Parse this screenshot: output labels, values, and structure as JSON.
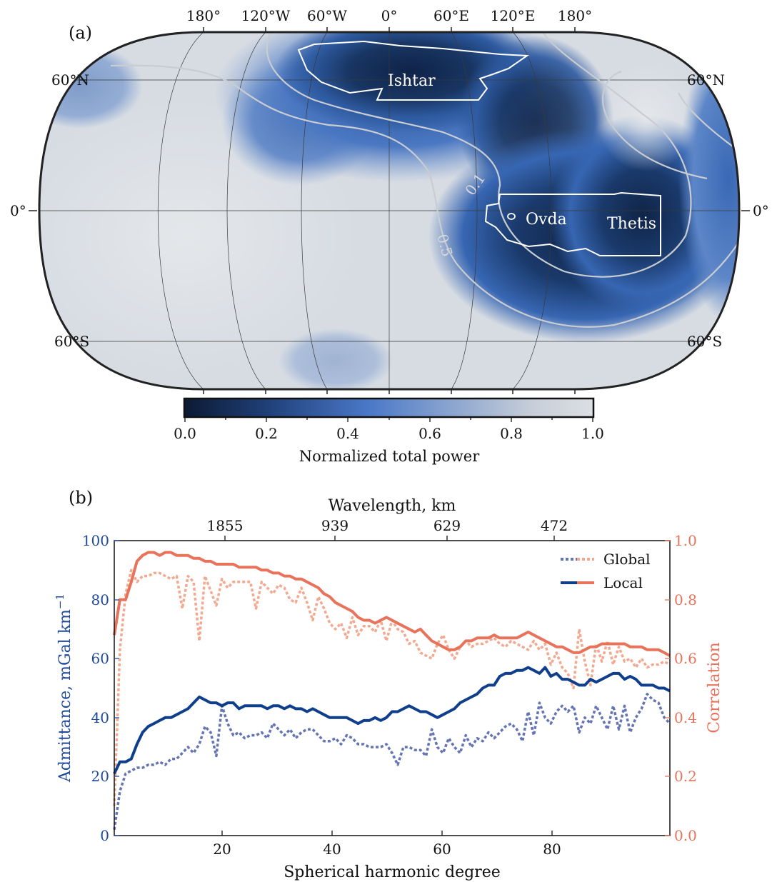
{
  "panel_a": {
    "label": "(a)",
    "lon_labels": [
      "180°",
      "120°W",
      "60°W",
      "0°",
      "60°E",
      "120°E",
      "180°"
    ],
    "lat_labels_left": [
      "60°N",
      "0°",
      "60°S"
    ],
    "lat_labels_right": [
      "60°N",
      "0°",
      "60°S"
    ],
    "regions": [
      "Ishtar",
      "Ovda",
      "Thetis"
    ],
    "contour_labels": [
      "0.1",
      "0.5"
    ],
    "colorbar": {
      "label": "Normalized total power",
      "ticks": [
        "0.0",
        "0.2",
        "0.4",
        "0.6",
        "0.8",
        "1.0"
      ],
      "colors": [
        "#0b1a33",
        "#1f3f78",
        "#4a78c8",
        "#8aa4cf",
        "#c7ced9",
        "#dcdfe3"
      ]
    }
  },
  "panel_b": {
    "label": "(b)",
    "top_axis_label": "Wavelength, km",
    "top_ticks": [
      "1855",
      "939",
      "629",
      "472"
    ],
    "xlabel": "Spherical harmonic degree",
    "ylabel_left": "Admittance, mGal km",
    "ylabel_left_sup": "−1",
    "ylabel_right": "Correlation",
    "x_ticks": [
      "20",
      "40",
      "60",
      "80"
    ],
    "y_left_ticks": [
      "0",
      "20",
      "40",
      "60",
      "80",
      "100"
    ],
    "y_right_ticks": [
      "0.0",
      "0.2",
      "0.4",
      "0.6",
      "0.8",
      "1.0"
    ],
    "legend": [
      "Global",
      "Local"
    ],
    "colors": {
      "admittance": "#0f3f8c",
      "admittance_global": "#6574b3",
      "correlation": "#e8735a",
      "correlation_global": "#f2a98f"
    }
  },
  "chart_data": {
    "type": "line",
    "x": [
      1,
      2,
      3,
      4,
      5,
      6,
      7,
      8,
      9,
      10,
      11,
      12,
      13,
      14,
      15,
      16,
      17,
      18,
      19,
      20,
      21,
      22,
      23,
      24,
      25,
      26,
      27,
      28,
      29,
      30,
      31,
      32,
      33,
      34,
      35,
      36,
      37,
      38,
      39,
      40,
      41,
      42,
      43,
      44,
      45,
      46,
      47,
      48,
      49,
      50,
      51,
      52,
      53,
      54,
      55,
      56,
      57,
      58,
      59,
      60,
      61,
      62,
      63,
      64,
      65,
      66,
      67,
      68,
      69,
      70,
      71,
      72,
      73,
      74,
      75,
      76,
      77,
      78,
      79,
      80,
      81,
      82,
      83,
      84,
      85,
      86,
      87,
      88,
      89,
      90,
      91,
      92,
      93,
      94,
      95,
      96,
      97,
      98,
      99
    ],
    "xlabel": "Spherical harmonic degree",
    "xlim": [
      1,
      99
    ],
    "ylabel": "Admittance, mGal km−1",
    "ylim": [
      0,
      100
    ],
    "y2label": "Correlation",
    "y2lim": [
      0,
      1
    ],
    "series": [
      {
        "name": "Global",
        "axis": "left",
        "values": [
          2,
          15,
          21,
          22,
          23,
          23,
          24,
          24,
          25,
          24,
          26,
          26,
          28,
          30,
          28,
          31,
          37,
          35,
          27,
          44,
          38,
          34,
          35,
          33,
          34,
          34,
          35,
          33,
          38,
          36,
          34,
          36,
          33,
          35,
          36,
          36,
          34,
          32,
          32,
          33,
          31,
          34,
          33,
          31,
          31,
          30,
          30,
          30,
          31,
          28,
          24,
          30,
          30,
          29,
          29,
          27,
          36,
          30,
          28,
          33,
          30,
          28,
          34,
          30,
          33,
          32,
          35,
          33,
          35,
          37,
          38,
          36,
          32,
          42,
          34,
          45,
          40,
          38,
          42,
          44,
          42,
          44,
          35,
          40,
          38,
          44,
          40,
          36,
          44,
          36,
          44,
          35,
          40,
          43,
          48,
          46,
          45,
          40,
          38
        ]
      },
      {
        "name": "Local",
        "axis": "left",
        "values": [
          21,
          25,
          25,
          26,
          31,
          35,
          37,
          38,
          39,
          40,
          40,
          41,
          42,
          43,
          45,
          47,
          46,
          45,
          45,
          44,
          45,
          45,
          43,
          44,
          44,
          44,
          44,
          43,
          44,
          44,
          43,
          44,
          43,
          43,
          42,
          43,
          42,
          41,
          40,
          40,
          40,
          40,
          39,
          38,
          39,
          39,
          40,
          39,
          40,
          42,
          42,
          43,
          44,
          43,
          42,
          42,
          41,
          40,
          41,
          42,
          43,
          45,
          46,
          47,
          48,
          50,
          51,
          51,
          54,
          55,
          55,
          56,
          56,
          57,
          56,
          55,
          57,
          54,
          55,
          53,
          53,
          52,
          51,
          51,
          53,
          52,
          53,
          54,
          55,
          55,
          53,
          54,
          53,
          51,
          51,
          51,
          50,
          50,
          49
        ]
      },
      {
        "name": "Global",
        "axis": "right",
        "values": [
          0.1,
          0.63,
          0.82,
          0.9,
          0.86,
          0.88,
          0.88,
          0.89,
          0.89,
          0.88,
          0.87,
          0.88,
          0.77,
          0.88,
          0.86,
          0.66,
          0.88,
          0.83,
          0.78,
          0.87,
          0.84,
          0.86,
          0.86,
          0.86,
          0.86,
          0.77,
          0.86,
          0.84,
          0.82,
          0.85,
          0.84,
          0.8,
          0.79,
          0.84,
          0.79,
          0.73,
          0.81,
          0.77,
          0.72,
          0.7,
          0.72,
          0.67,
          0.74,
          0.68,
          0.71,
          0.71,
          0.69,
          0.73,
          0.66,
          0.73,
          0.7,
          0.69,
          0.65,
          0.66,
          0.62,
          0.61,
          0.6,
          0.65,
          0.68,
          0.63,
          0.6,
          0.64,
          0.66,
          0.64,
          0.65,
          0.65,
          0.66,
          0.67,
          0.65,
          0.64,
          0.66,
          0.65,
          0.64,
          0.63,
          0.66,
          0.63,
          0.65,
          0.58,
          0.62,
          0.57,
          0.55,
          0.5,
          0.7,
          0.59,
          0.51,
          0.65,
          0.59,
          0.66,
          0.58,
          0.64,
          0.59,
          0.6,
          0.57,
          0.6,
          0.57,
          0.58,
          0.58,
          0.59,
          0.58
        ]
      },
      {
        "name": "Local",
        "axis": "right",
        "values": [
          0.68,
          0.8,
          0.8,
          0.86,
          0.93,
          0.95,
          0.96,
          0.96,
          0.95,
          0.96,
          0.96,
          0.95,
          0.95,
          0.95,
          0.94,
          0.94,
          0.93,
          0.93,
          0.92,
          0.92,
          0.92,
          0.92,
          0.91,
          0.91,
          0.91,
          0.91,
          0.9,
          0.9,
          0.89,
          0.89,
          0.88,
          0.88,
          0.87,
          0.87,
          0.86,
          0.85,
          0.84,
          0.82,
          0.81,
          0.79,
          0.78,
          0.77,
          0.76,
          0.74,
          0.73,
          0.73,
          0.72,
          0.73,
          0.74,
          0.73,
          0.72,
          0.71,
          0.7,
          0.69,
          0.7,
          0.68,
          0.66,
          0.65,
          0.64,
          0.63,
          0.63,
          0.64,
          0.66,
          0.66,
          0.67,
          0.67,
          0.67,
          0.68,
          0.67,
          0.67,
          0.67,
          0.67,
          0.68,
          0.69,
          0.68,
          0.67,
          0.66,
          0.65,
          0.64,
          0.64,
          0.63,
          0.62,
          0.62,
          0.63,
          0.64,
          0.64,
          0.65,
          0.65,
          0.65,
          0.65,
          0.65,
          0.64,
          0.64,
          0.64,
          0.63,
          0.63,
          0.63,
          0.62,
          0.61
        ]
      }
    ]
  }
}
